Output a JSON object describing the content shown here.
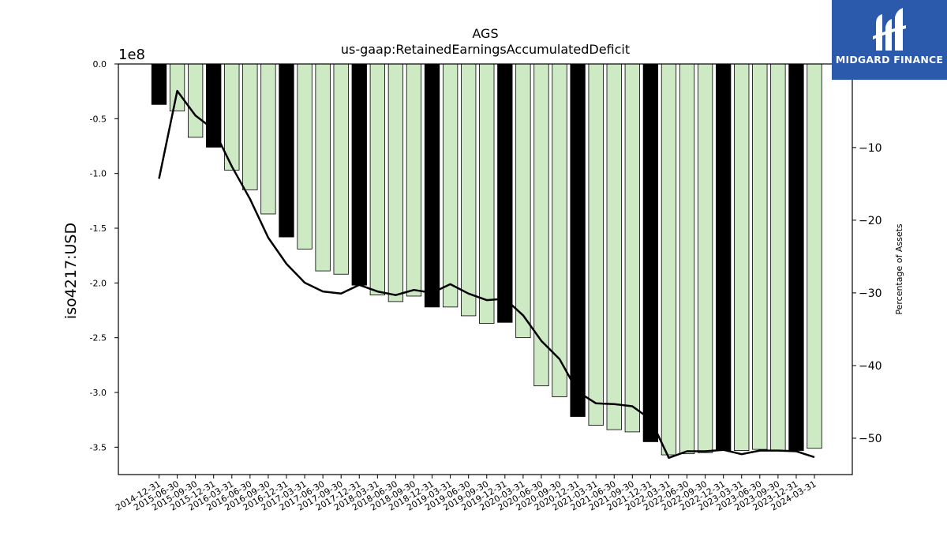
{
  "logo": {
    "text": "MIDGARD FINANCE",
    "color": "#2b5aad"
  },
  "chart_data": {
    "type": "bar",
    "title": "AGS",
    "subtitle": "us-gaap:RetainedEarningsAccumulatedDeficit",
    "ylabel": "iso4217:USD",
    "y_offset_label": "1e8",
    "y2label": "Percentage of Assets",
    "ylim": [
      -3.75,
      0
    ],
    "y2lim": [
      -55,
      1.5
    ],
    "yticks": [
      "0.0",
      "-0.5",
      "-1.0",
      "-1.5",
      "-2.0",
      "-2.5",
      "-3.0",
      "-3.5"
    ],
    "y2ticks": [
      "−10",
      "−20",
      "−30",
      "−40",
      "−50"
    ],
    "colors": {
      "annual": "#000000",
      "quarterly": "#cdeac5",
      "line": "#000000"
    },
    "categories": [
      "2014-12-31",
      "2015-06-30",
      "2015-09-30",
      "2015-12-31",
      "2016-03-31",
      "2016-06-30",
      "2016-09-30",
      "2016-12-31",
      "2017-03-31",
      "2017-06-30",
      "2017-09-30",
      "2017-12-31",
      "2018-03-31",
      "2018-06-30",
      "2018-09-30",
      "2018-12-31",
      "2019-03-31",
      "2019-06-30",
      "2019-09-30",
      "2019-12-31",
      "2020-03-31",
      "2020-06-30",
      "2020-09-30",
      "2020-12-31",
      "2021-03-31",
      "2021-06-30",
      "2021-09-30",
      "2021-12-31",
      "2022-03-31",
      "2022-06-30",
      "2022-09-30",
      "2022-12-31",
      "2023-03-31",
      "2023-06-30",
      "2023-09-30",
      "2023-12-31",
      "2024-03-31"
    ],
    "series": [
      {
        "type": "bar",
        "values": [
          -0.37,
          -0.43,
          -0.67,
          -0.76,
          -0.97,
          -1.15,
          -1.37,
          -1.58,
          -1.69,
          -1.89,
          -1.92,
          -2.02,
          -2.11,
          -2.17,
          -2.12,
          -2.22,
          -2.22,
          -2.3,
          -2.37,
          -2.36,
          -2.5,
          -2.94,
          -3.04,
          -3.22,
          -3.3,
          -3.34,
          -3.36,
          -3.45,
          -3.57,
          -3.56,
          -3.55,
          -3.53,
          -3.53,
          -3.52,
          -3.53,
          -3.53,
          -3.51
        ],
        "is_annual": [
          true,
          false,
          false,
          true,
          false,
          false,
          false,
          true,
          false,
          false,
          false,
          true,
          false,
          false,
          false,
          true,
          false,
          false,
          false,
          true,
          false,
          false,
          false,
          true,
          false,
          false,
          false,
          true,
          false,
          false,
          false,
          true,
          false,
          false,
          false,
          true,
          false
        ]
      },
      {
        "type": "line",
        "axis": "right",
        "values": [
          -14.3,
          -2.2,
          -5.6,
          -7.5,
          -12.6,
          -17.1,
          -22.4,
          -26.0,
          -28.6,
          -29.8,
          -30.1,
          -28.9,
          -29.8,
          -30.3,
          -29.6,
          -30.0,
          -28.8,
          -30.1,
          -31.0,
          -30.8,
          -33.1,
          -36.6,
          -39.1,
          -43.6,
          -45.2,
          -45.3,
          -45.6,
          -47.4,
          -52.7,
          -51.8,
          -51.8,
          -51.6,
          -52.2,
          -51.7,
          -51.7,
          -51.8,
          -52.6
        ]
      }
    ]
  }
}
